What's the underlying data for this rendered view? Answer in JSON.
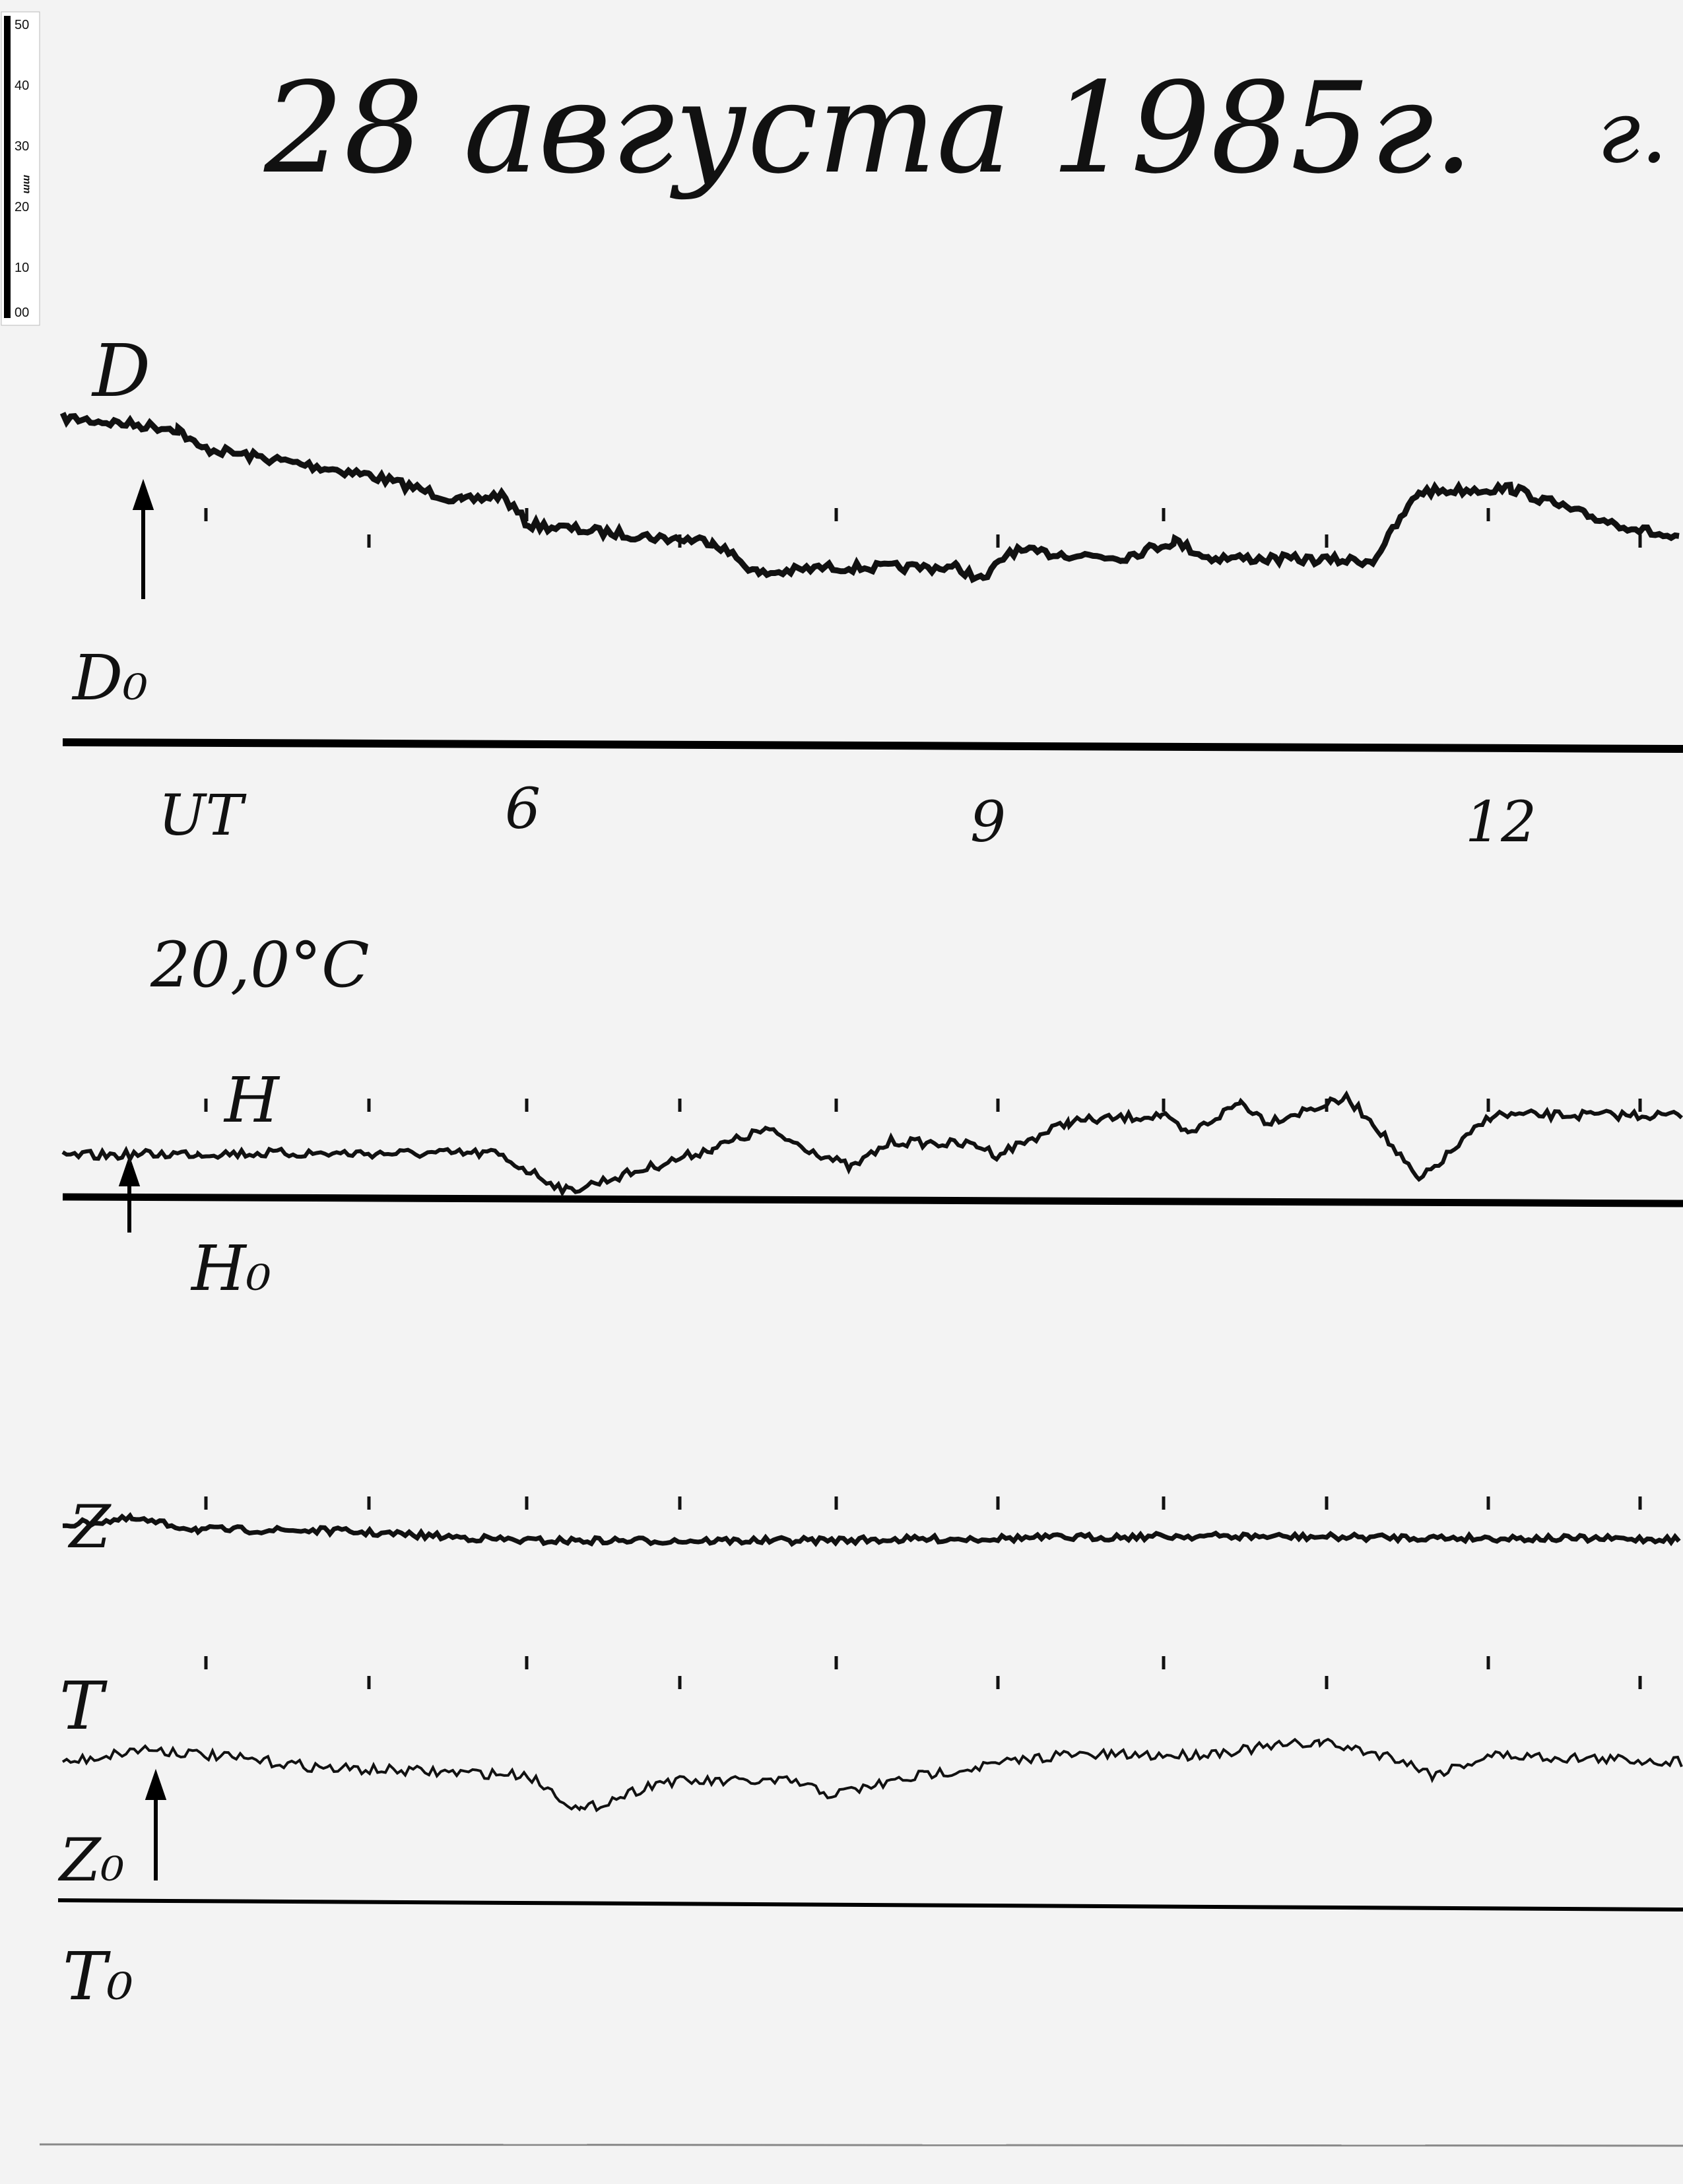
{
  "header": {
    "date_title": "28 августа 1985г.",
    "location_fragment": "г. Р"
  },
  "scale_bar": {
    "unit": "mm",
    "ticks": [
      "50",
      "40",
      "30",
      "20",
      "10",
      "00"
    ]
  },
  "traces": {
    "D": {
      "label": "D",
      "baseline_label": "D₀"
    },
    "H": {
      "label": "H",
      "baseline_label": "H₀"
    },
    "Z": {
      "label": "Z",
      "baseline_label": "Z₀"
    },
    "T": {
      "label": "T",
      "baseline_label": "T₀"
    }
  },
  "time_axis": {
    "zone_label": "UT",
    "hour_labels": [
      "6",
      "9",
      "12"
    ]
  },
  "temperature": "20,0°C",
  "colors": {
    "paper": "#f3f3f3",
    "ink": "#111111"
  }
}
